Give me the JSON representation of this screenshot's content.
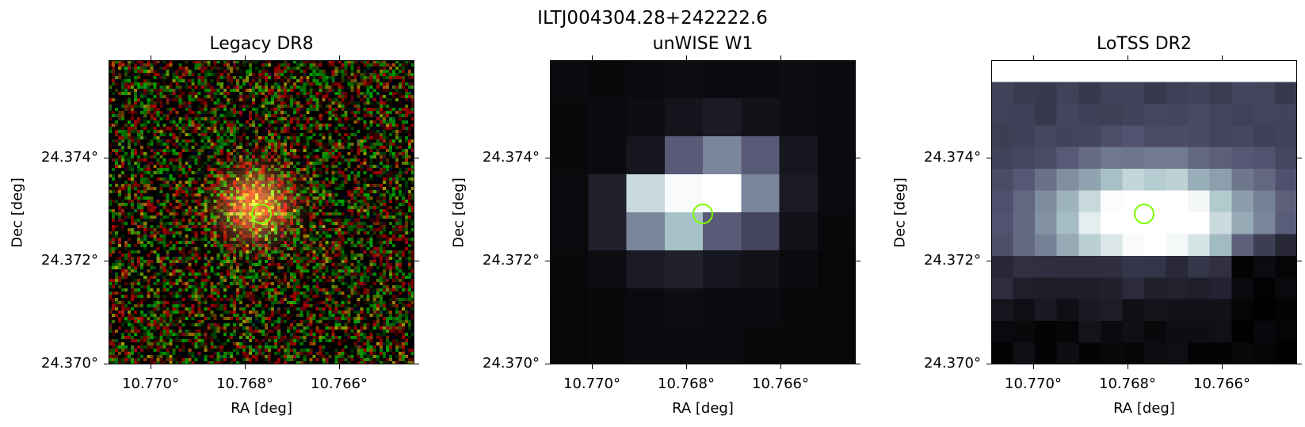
{
  "figure": {
    "title": "ILTJ004304.28+242222.6"
  },
  "panels": [
    {
      "title": "Legacy DR8",
      "xlabel": "RA [deg]",
      "ylabel": "Dec [deg]",
      "xticks": [
        "10.770°",
        "10.768°",
        "10.766°"
      ],
      "yticks": [
        "24.374°",
        "24.372°",
        "24.370°"
      ],
      "colormap": "rgb-noise",
      "marker_color": "#7CFC00"
    },
    {
      "title": "unWISE W1",
      "xlabel": "RA [deg]",
      "ylabel": "Dec [deg]",
      "xticks": [
        "10.770°",
        "10.768°",
        "10.766°"
      ],
      "yticks": [
        "24.374°",
        "24.372°",
        "24.370°"
      ],
      "colormap": "bone",
      "marker_color": "#7CFC00"
    },
    {
      "title": "LoTSS DR2",
      "xlabel": "RA [deg]",
      "ylabel": "Dec [deg]",
      "xticks": [
        "10.770°",
        "10.768°",
        "10.766°"
      ],
      "yticks": [
        "24.374°",
        "24.372°",
        "24.370°"
      ],
      "colormap": "bone",
      "marker_color": "#7CFC00"
    }
  ]
}
